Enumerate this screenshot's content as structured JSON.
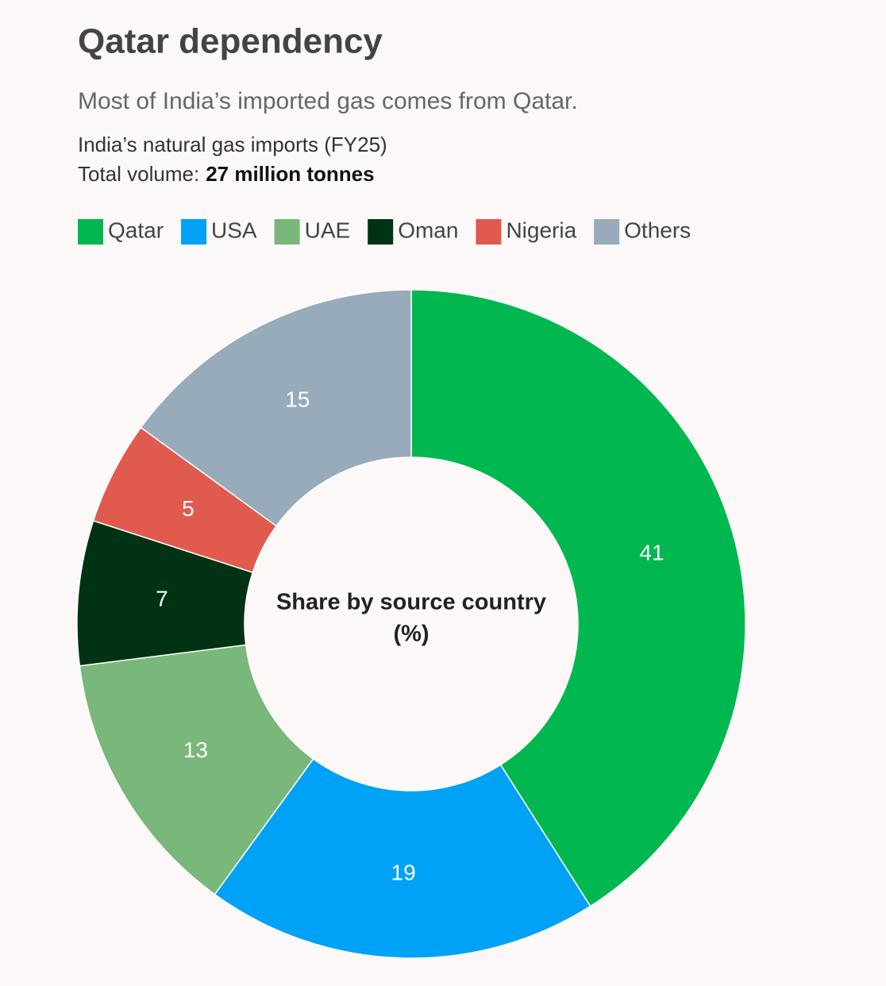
{
  "chart_data": {
    "type": "pie",
    "title": "Qatar dependency",
    "subtitle": "Most of India’s imported gas comes from Qatar.",
    "note": "India’s natural gas imports (FY25)",
    "total_label": "Total volume:",
    "total_value": "27 million tonnes",
    "center_label": [
      "Share by source country",
      "(%)"
    ],
    "categories": [
      "Qatar",
      "USA",
      "UAE",
      "Oman",
      "Nigeria",
      "Others"
    ],
    "values": [
      41,
      19,
      13,
      7,
      5,
      15
    ],
    "colors": [
      "#00b84f",
      "#00a2f5",
      "#79b77b",
      "#003314",
      "#e05a4e",
      "#97abba"
    ],
    "donut": true
  }
}
